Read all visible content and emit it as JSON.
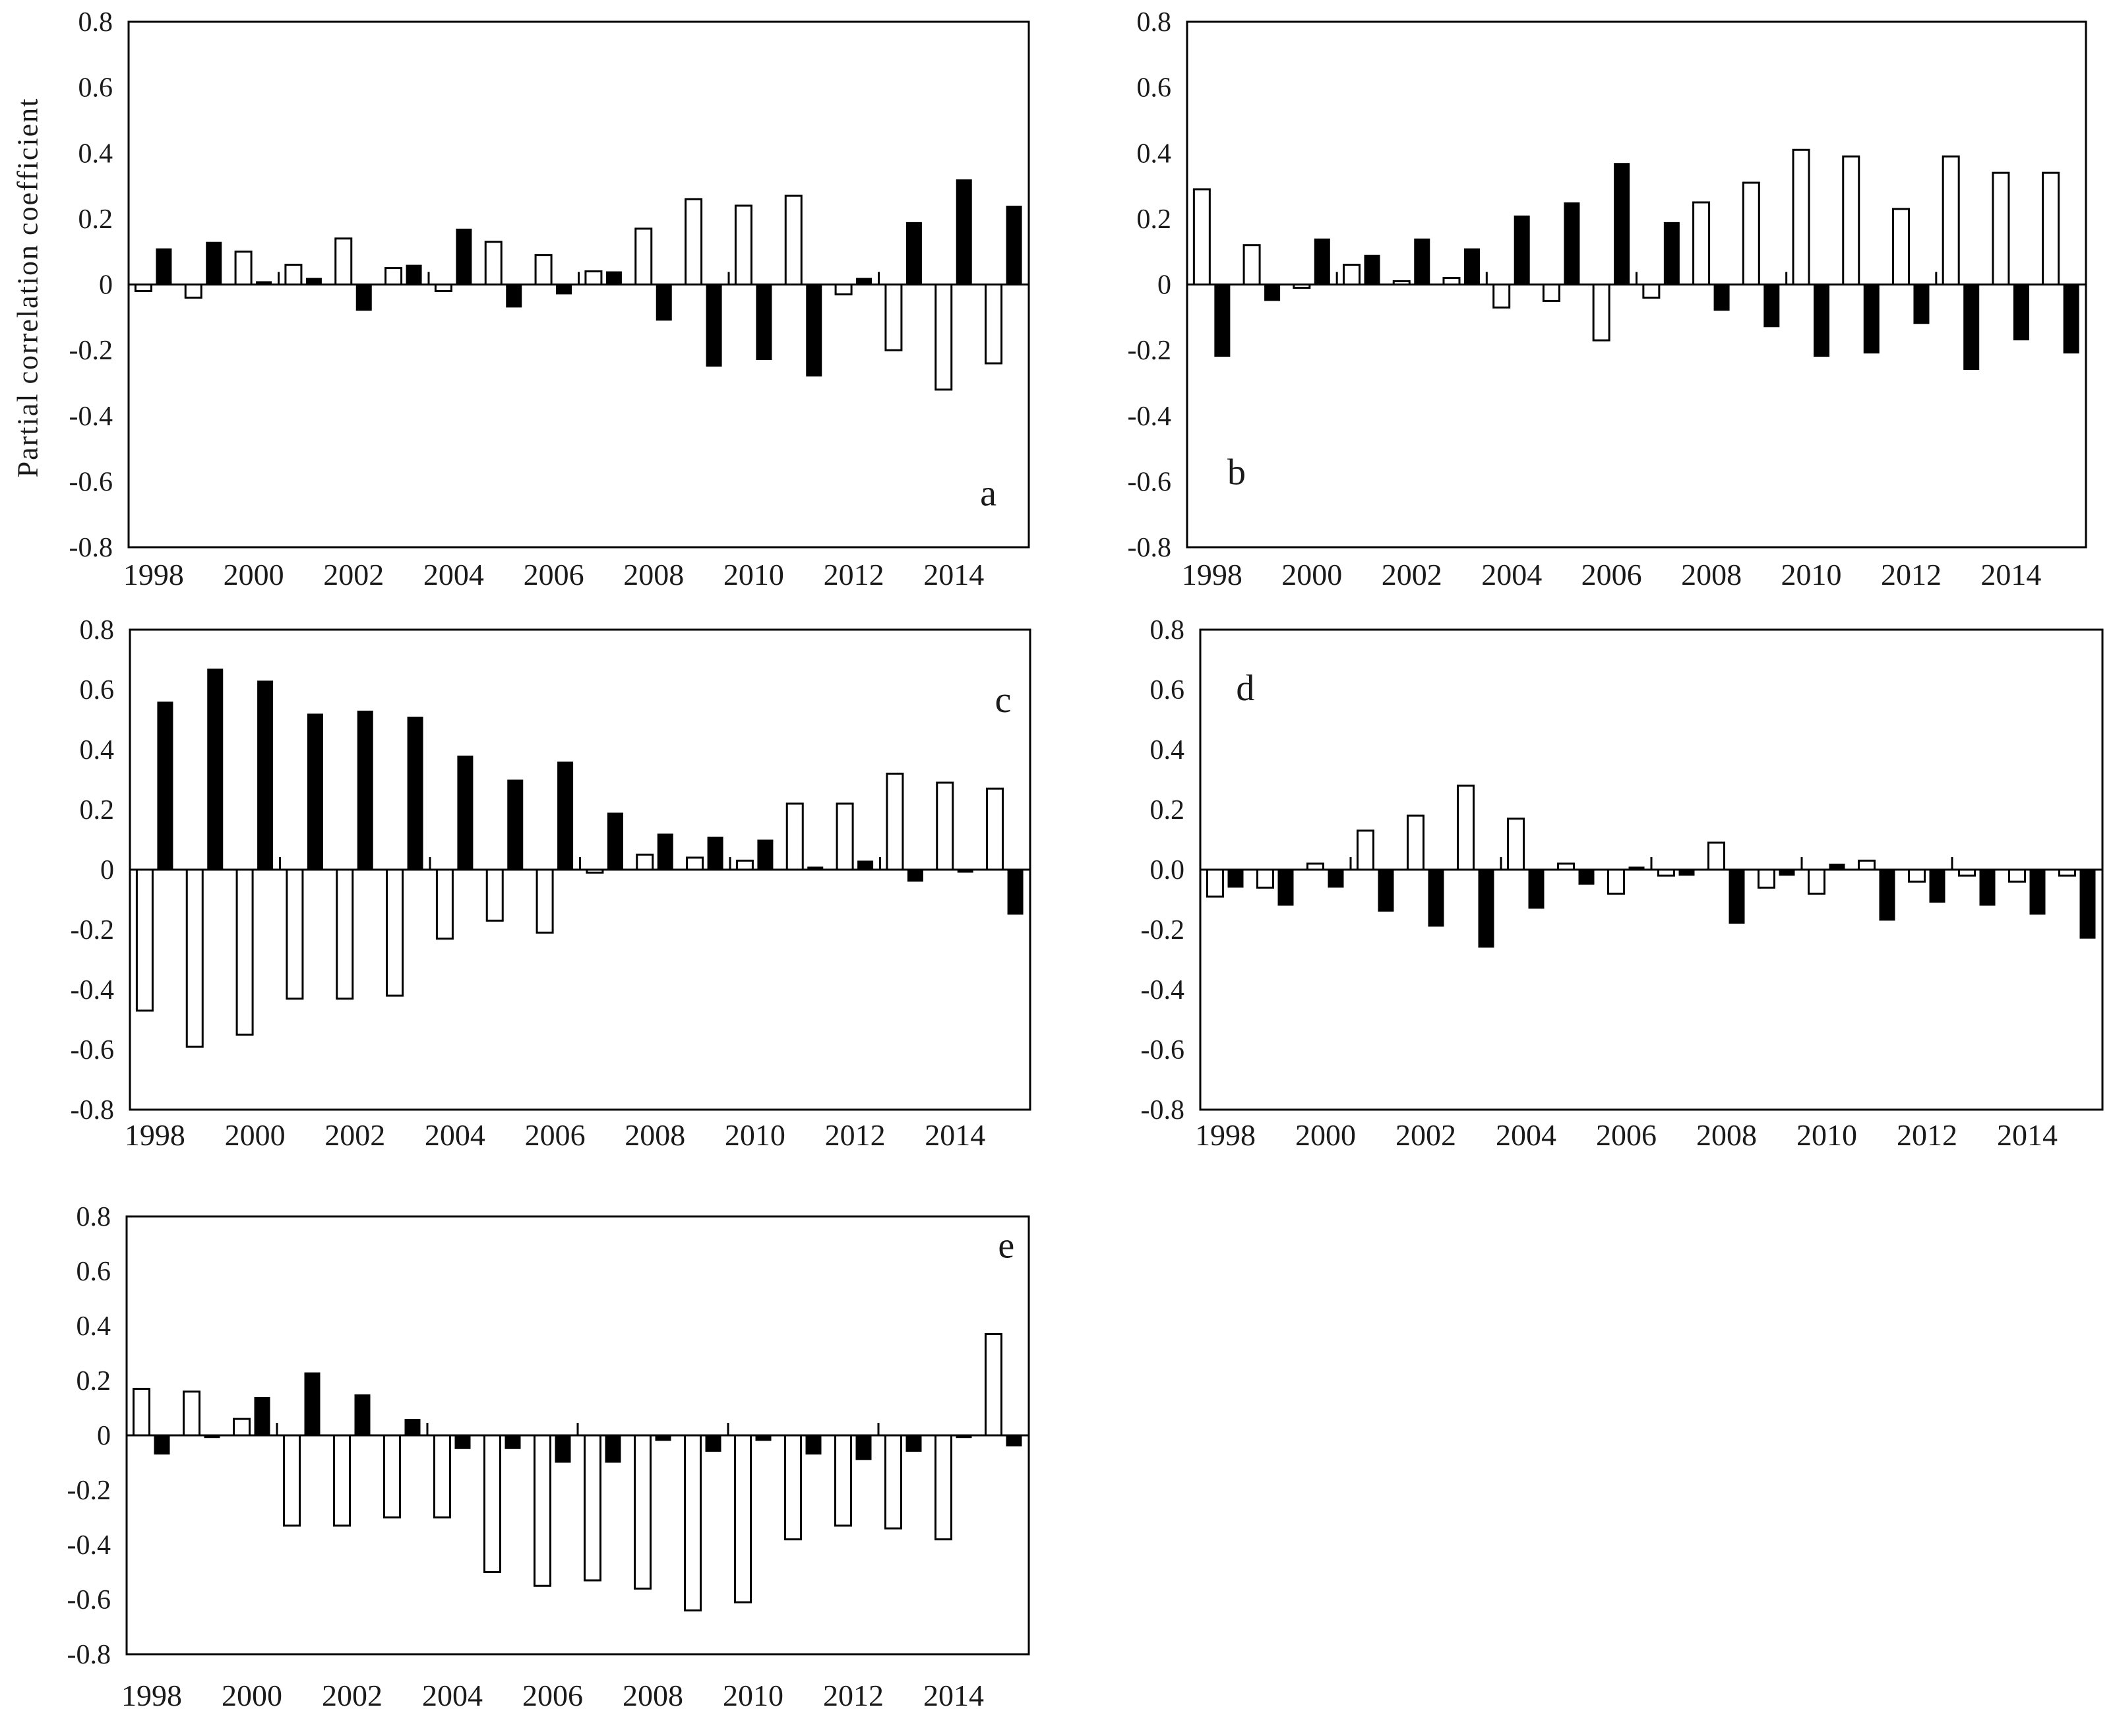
{
  "figure": {
    "ylabel": "Partial correlation coefficient",
    "background": "#ffffff",
    "axis_color": "#000000",
    "text_color": "#1a1a1a",
    "open_bar_fill": "#ffffff",
    "filled_bar_fill": "#000000"
  },
  "chart_data": [
    {
      "type": "bar",
      "panel_label": "a",
      "ylabel": "Partial correlation coefficient",
      "xlabel": "",
      "ylim": [
        -0.8,
        0.8
      ],
      "ytick_step": 0.2,
      "zero_tick_label": "0",
      "grid": "off",
      "legend": "none",
      "x_tick_years": [
        1998,
        2000,
        2002,
        2004,
        2006,
        2008,
        2010,
        2012,
        2014
      ],
      "categories": [
        1998,
        1999,
        2000,
        2001,
        2002,
        2003,
        2004,
        2005,
        2006,
        2007,
        2008,
        2009,
        2010,
        2011,
        2012,
        2013,
        2014,
        2015
      ],
      "series": [
        {
          "name": "open-bars",
          "fill": "white",
          "values": [
            -0.02,
            -0.04,
            0.1,
            0.06,
            0.14,
            0.05,
            -0.02,
            0.13,
            0.09,
            0.04,
            0.17,
            0.26,
            0.24,
            0.27,
            -0.03,
            -0.2,
            -0.32,
            -0.24
          ]
        },
        {
          "name": "filled-bars",
          "fill": "black",
          "values": [
            0.11,
            0.13,
            0.01,
            0.02,
            -0.08,
            0.06,
            0.17,
            -0.07,
            -0.03,
            0.04,
            -0.11,
            -0.25,
            -0.23,
            -0.28,
            0.02,
            0.19,
            0.32,
            0.24
          ]
        }
      ],
      "inner_tick_indices": [
        3,
        6,
        9,
        12,
        15
      ],
      "letter_pos": {
        "x": 0.955,
        "y": 0.9
      }
    },
    {
      "type": "bar",
      "panel_label": "b",
      "ylabel": "",
      "xlabel": "",
      "ylim": [
        -0.8,
        0.8
      ],
      "ytick_step": 0.2,
      "zero_tick_label": "0",
      "grid": "off",
      "legend": "none",
      "x_tick_years": [
        1998,
        2000,
        2002,
        2004,
        2006,
        2008,
        2010,
        2012,
        2014
      ],
      "categories": [
        1998,
        1999,
        2000,
        2001,
        2002,
        2003,
        2004,
        2005,
        2006,
        2007,
        2008,
        2009,
        2010,
        2011,
        2012,
        2013,
        2014,
        2015
      ],
      "series": [
        {
          "name": "open-bars",
          "fill": "white",
          "values": [
            0.29,
            0.12,
            -0.01,
            0.06,
            0.01,
            0.02,
            -0.07,
            -0.05,
            -0.17,
            -0.04,
            0.25,
            0.31,
            0.41,
            0.39,
            0.23,
            0.39,
            0.34,
            0.34
          ]
        },
        {
          "name": "filled-bars",
          "fill": "black",
          "values": [
            -0.22,
            -0.05,
            0.14,
            0.09,
            0.14,
            0.11,
            0.21,
            0.25,
            0.37,
            0.19,
            -0.08,
            -0.13,
            -0.22,
            -0.21,
            -0.12,
            -0.26,
            -0.17,
            -0.21
          ]
        }
      ],
      "inner_tick_indices": [
        3,
        6,
        9,
        12,
        15
      ],
      "letter_pos": {
        "x": 0.055,
        "y": 0.86
      }
    },
    {
      "type": "bar",
      "panel_label": "c",
      "ylabel": "",
      "xlabel": "",
      "ylim": [
        -0.8,
        0.8
      ],
      "ytick_step": 0.2,
      "zero_tick_label": "0",
      "grid": "off",
      "legend": "none",
      "x_tick_years": [
        1998,
        2000,
        2002,
        2004,
        2006,
        2008,
        2010,
        2012,
        2014
      ],
      "categories": [
        1998,
        1999,
        2000,
        2001,
        2002,
        2003,
        2004,
        2005,
        2006,
        2007,
        2008,
        2009,
        2010,
        2011,
        2012,
        2013,
        2014,
        2015
      ],
      "series": [
        {
          "name": "open-bars",
          "fill": "white",
          "values": [
            -0.47,
            -0.59,
            -0.55,
            -0.43,
            -0.43,
            -0.42,
            -0.23,
            -0.17,
            -0.21,
            -0.01,
            0.05,
            0.04,
            0.03,
            0.22,
            0.22,
            0.32,
            0.29,
            0.27
          ]
        },
        {
          "name": "filled-bars",
          "fill": "black",
          "values": [
            0.56,
            0.67,
            0.63,
            0.52,
            0.53,
            0.51,
            0.38,
            0.3,
            0.36,
            0.19,
            0.12,
            0.11,
            0.1,
            0.01,
            0.03,
            -0.04,
            -0.01,
            -0.15
          ]
        }
      ],
      "inner_tick_indices": [
        3,
        6,
        9,
        12,
        15
      ],
      "letter_pos": {
        "x": 0.97,
        "y": 0.15
      }
    },
    {
      "type": "bar",
      "panel_label": "d",
      "ylabel": "",
      "xlabel": "",
      "ylim": [
        -0.8,
        0.8
      ],
      "ytick_step": 0.2,
      "zero_tick_label": "0.0",
      "grid": "off",
      "legend": "none",
      "x_tick_years": [
        1998,
        2000,
        2002,
        2004,
        2006,
        2008,
        2010,
        2012,
        2014
      ],
      "categories": [
        1998,
        1999,
        2000,
        2001,
        2002,
        2003,
        2004,
        2005,
        2006,
        2007,
        2008,
        2009,
        2010,
        2011,
        2012,
        2013,
        2014,
        2015
      ],
      "series": [
        {
          "name": "open-bars",
          "fill": "white",
          "values": [
            -0.09,
            -0.06,
            0.02,
            0.13,
            0.18,
            0.28,
            0.17,
            0.02,
            -0.08,
            -0.02,
            0.09,
            -0.06,
            -0.08,
            0.03,
            -0.04,
            -0.02,
            -0.04,
            -0.02
          ]
        },
        {
          "name": "filled-bars",
          "fill": "black",
          "values": [
            -0.06,
            -0.12,
            -0.06,
            -0.14,
            -0.19,
            -0.26,
            -0.13,
            -0.05,
            0.01,
            -0.02,
            -0.18,
            -0.02,
            0.02,
            -0.17,
            -0.11,
            -0.12,
            -0.15,
            -0.23
          ]
        }
      ],
      "inner_tick_indices": [
        3,
        6,
        9,
        12,
        15
      ],
      "letter_pos": {
        "x": 0.05,
        "y": 0.125
      }
    },
    {
      "type": "bar",
      "panel_label": "e",
      "ylabel": "",
      "xlabel": "",
      "ylim": [
        -0.8,
        0.8
      ],
      "ytick_step": 0.2,
      "zero_tick_label": "0",
      "grid": "off",
      "legend": "none",
      "x_tick_years": [
        1998,
        2000,
        2002,
        2004,
        2006,
        2008,
        2010,
        2012,
        2014
      ],
      "categories": [
        1998,
        1999,
        2000,
        2001,
        2002,
        2003,
        2004,
        2005,
        2006,
        2007,
        2008,
        2009,
        2010,
        2011,
        2012,
        2013,
        2014,
        2015
      ],
      "series": [
        {
          "name": "open-bars",
          "fill": "white",
          "values": [
            0.17,
            0.16,
            0.06,
            -0.33,
            -0.33,
            -0.3,
            -0.3,
            -0.5,
            -0.55,
            -0.53,
            -0.56,
            -0.64,
            -0.61,
            -0.38,
            -0.33,
            -0.34,
            -0.38,
            0.37
          ]
        },
        {
          "name": "filled-bars",
          "fill": "black",
          "values": [
            -0.07,
            -0.01,
            0.14,
            0.23,
            0.15,
            0.06,
            -0.05,
            -0.05,
            -0.1,
            -0.1,
            -0.02,
            -0.06,
            -0.02,
            -0.07,
            -0.09,
            -0.06,
            -0.01,
            -0.04
          ]
        }
      ],
      "inner_tick_indices": [
        3,
        6,
        9,
        12,
        15
      ],
      "letter_pos": {
        "x": 0.975,
        "y": 0.07
      }
    }
  ]
}
